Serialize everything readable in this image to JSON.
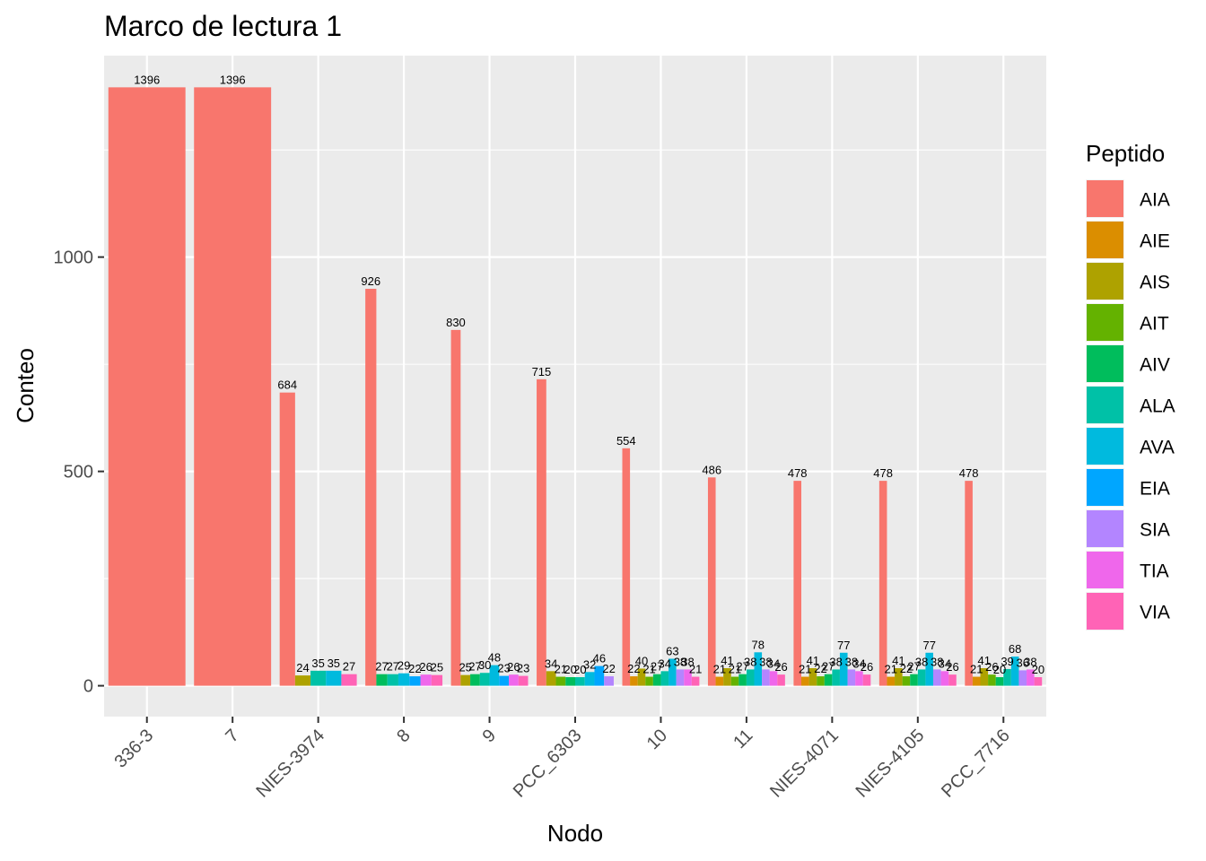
{
  "chart_data": {
    "type": "bar",
    "title": "Marco de lectura 1",
    "xlabel": "Nodo",
    "ylabel": "Conteo",
    "ylim": [
      -72,
      1470
    ],
    "yticks": [
      0,
      500,
      1000
    ],
    "grid": true,
    "legend": {
      "title": "Peptido",
      "position": "right"
    },
    "categories": [
      "336-3",
      "7",
      "NIES-3974",
      "8",
      "9",
      "PCC_6303",
      "10",
      "11",
      "NIES-4071",
      "NIES-4105",
      "PCC_7716"
    ],
    "series": [
      {
        "name": "AIA",
        "color": "#F8766D",
        "values": [
          1396,
          1396,
          684,
          926,
          830,
          715,
          554,
          486,
          478,
          478,
          478
        ]
      },
      {
        "name": "AIE",
        "color": "#DB8E00",
        "values": [
          null,
          null,
          null,
          null,
          null,
          null,
          22,
          21,
          21,
          21,
          21
        ]
      },
      {
        "name": "AIS",
        "color": "#AEA200",
        "values": [
          null,
          null,
          24,
          null,
          25,
          34,
          40,
          41,
          41,
          41,
          41
        ]
      },
      {
        "name": "AIT",
        "color": "#64B200",
        "values": [
          null,
          null,
          null,
          null,
          null,
          21,
          21,
          21,
          22,
          22,
          26
        ]
      },
      {
        "name": "AIV",
        "color": "#00BD5C",
        "values": [
          null,
          null,
          null,
          27,
          27,
          20,
          27,
          27,
          27,
          27,
          20
        ]
      },
      {
        "name": "ALA",
        "color": "#00C1A7",
        "values": [
          null,
          null,
          35,
          27,
          30,
          20,
          34,
          38,
          38,
          38,
          39
        ]
      },
      {
        "name": "AVA",
        "color": "#00BADE",
        "values": [
          null,
          null,
          35,
          29,
          48,
          32,
          63,
          78,
          77,
          77,
          68
        ]
      },
      {
        "name": "EIA",
        "color": "#00A6FF",
        "values": [
          null,
          null,
          null,
          22,
          23,
          46,
          null,
          null,
          null,
          null,
          null
        ]
      },
      {
        "name": "SIA",
        "color": "#B385FF",
        "values": [
          null,
          null,
          null,
          null,
          null,
          22,
          38,
          38,
          38,
          38,
          36
        ]
      },
      {
        "name": "TIA",
        "color": "#EF67EB",
        "values": [
          null,
          null,
          null,
          26,
          26,
          null,
          38,
          34,
          34,
          34,
          38
        ]
      },
      {
        "name": "VIA",
        "color": "#FF63B6",
        "values": [
          null,
          null,
          27,
          25,
          23,
          null,
          21,
          26,
          26,
          26,
          20
        ]
      }
    ]
  }
}
